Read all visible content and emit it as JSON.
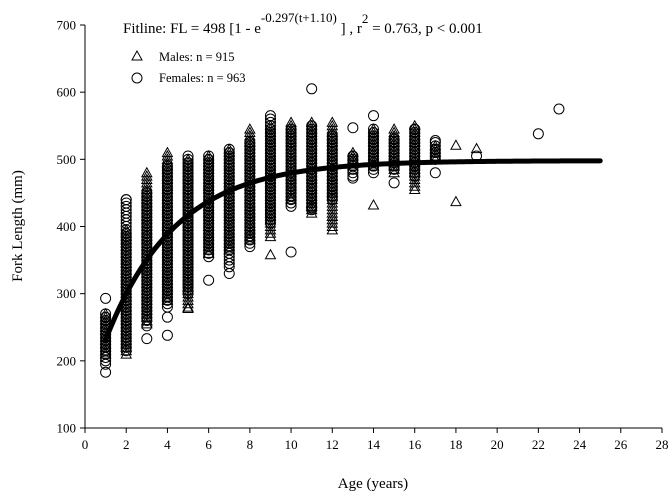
{
  "chart_data": {
    "type": "scatter",
    "xlabel": "Age (years)",
    "ylabel": "Fork Length (mm)",
    "xlim": [
      0,
      28
    ],
    "ylim": [
      100,
      700
    ],
    "x_ticks": [
      0,
      2,
      4,
      6,
      8,
      10,
      12,
      14,
      16,
      18,
      20,
      22,
      24,
      26,
      28
    ],
    "y_ticks": [
      100,
      200,
      300,
      400,
      500,
      600,
      700
    ],
    "grid": false,
    "legend_placement": "top-left",
    "annotation": {
      "prefix": "Fitline:  FL = 498 [1 - e",
      "exponent": "-0.297(t+1.10)",
      "middle": " ] ,  r",
      "r_exp": "2",
      "suffix": " = 0.763, p < 0.001"
    },
    "fit": {
      "Linf": 498,
      "k": 0.297,
      "t0": -1.1,
      "x_start": 1,
      "x_end": 25,
      "color": "#000000"
    },
    "series": [
      {
        "name": "Males:  n = 915",
        "marker": "triangle",
        "ranges": [
          {
            "x": 1,
            "min": 210,
            "max": 270
          },
          {
            "x": 2,
            "min": 210,
            "max": 395
          },
          {
            "x": 3,
            "min": 255,
            "max": 480
          },
          {
            "x": 4,
            "min": 290,
            "max": 512
          },
          {
            "x": 5,
            "min": 280,
            "max": 500
          },
          {
            "x": 6,
            "min": 360,
            "max": 505
          },
          {
            "x": 7,
            "min": 365,
            "max": 515
          },
          {
            "x": 8,
            "min": 380,
            "max": 545
          },
          {
            "x": 9,
            "min": 385,
            "max": 550
          },
          {
            "x": 10,
            "min": 440,
            "max": 555
          },
          {
            "x": 11,
            "min": 420,
            "max": 555
          },
          {
            "x": 12,
            "min": 395,
            "max": 555
          },
          {
            "x": 13,
            "min": 490,
            "max": 510
          },
          {
            "x": 14,
            "min": 490,
            "max": 545
          },
          {
            "x": 15,
            "min": 480,
            "max": 545
          },
          {
            "x": 16,
            "min": 455,
            "max": 550
          },
          {
            "x": 17,
            "min": 500,
            "max": 520
          }
        ],
        "outliers": [
          [
            5,
            278
          ],
          [
            9,
            358
          ],
          [
            12,
            415
          ],
          [
            14,
            432
          ],
          [
            18,
            437
          ],
          [
            18,
            521
          ],
          [
            19,
            516
          ],
          [
            13,
            505
          ]
        ]
      },
      {
        "name": "Females:  n = 963",
        "marker": "circle",
        "ranges": [
          {
            "x": 1,
            "min": 195,
            "max": 270
          },
          {
            "x": 2,
            "min": 215,
            "max": 440
          },
          {
            "x": 3,
            "min": 260,
            "max": 452
          },
          {
            "x": 4,
            "min": 280,
            "max": 492
          },
          {
            "x": 5,
            "min": 300,
            "max": 505
          },
          {
            "x": 6,
            "min": 355,
            "max": 508
          },
          {
            "x": 7,
            "min": 340,
            "max": 518
          },
          {
            "x": 8,
            "min": 370,
            "max": 525
          },
          {
            "x": 9,
            "min": 405,
            "max": 560
          },
          {
            "x": 10,
            "min": 430,
            "max": 545
          },
          {
            "x": 11,
            "min": 425,
            "max": 550
          },
          {
            "x": 12,
            "min": 440,
            "max": 535
          },
          {
            "x": 13,
            "min": 475,
            "max": 505
          },
          {
            "x": 14,
            "min": 480,
            "max": 545
          },
          {
            "x": 15,
            "min": 485,
            "max": 530
          },
          {
            "x": 16,
            "min": 475,
            "max": 545
          },
          {
            "x": 17,
            "min": 500,
            "max": 525
          }
        ],
        "outliers": [
          [
            1,
            183
          ],
          [
            1,
            293
          ],
          [
            2,
            440
          ],
          [
            3,
            233
          ],
          [
            3,
            252
          ],
          [
            4,
            238
          ],
          [
            4,
            265
          ],
          [
            6,
            320
          ],
          [
            7,
            330
          ],
          [
            10,
            362
          ],
          [
            11,
            605
          ],
          [
            11,
            428
          ],
          [
            12,
            445
          ],
          [
            13,
            547
          ],
          [
            13,
            472
          ],
          [
            14,
            565
          ],
          [
            14,
            490
          ],
          [
            15,
            465
          ],
          [
            16,
            545
          ],
          [
            17,
            480
          ],
          [
            17,
            528
          ],
          [
            19,
            505
          ],
          [
            22,
            538
          ],
          [
            23,
            575
          ],
          [
            9,
            565
          ]
        ]
      }
    ]
  }
}
